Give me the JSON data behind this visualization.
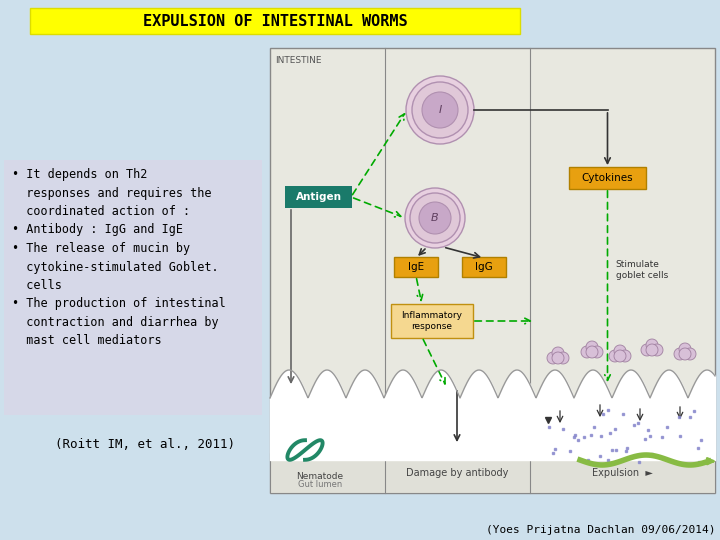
{
  "background_color": "#cde0ec",
  "title": "EXPULSION OF INTESTINAL WORMS",
  "title_bg": "#ffff00",
  "title_fontsize": 11,
  "title_fontweight": "bold",
  "left_panel_bg": "#d8d8e8",
  "citation": "(Roitt IM, et al., 2011)",
  "footer": "(Yoes Prijatna Dachlan 09/06/2014)",
  "diagram_bg": "#e8e8e0",
  "antigen_color": "#1a7a6a",
  "cytokines_color": "#e8a010",
  "ige_igg_color": "#e8a010",
  "arrow_green": "#00aa00",
  "arrow_dark": "#333333",
  "cell_fill": "#e0c8d8",
  "cell_edge": "#b090b0",
  "inflammatory_fill": "#f5d890",
  "inflammatory_edge": "#c09010",
  "villi_fill": "#ffffff",
  "villi_edge": "#999999",
  "dot_color": "#8888cc",
  "worm_color": "#228866",
  "expulsion_worm": "#88bb44"
}
